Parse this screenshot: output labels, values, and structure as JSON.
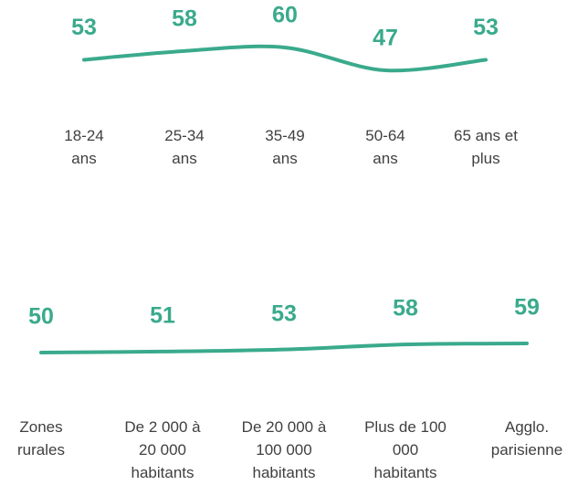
{
  "chart_data": [
    {
      "type": "line",
      "color": "#3aaa8c",
      "categories": [
        "18-24 ans",
        "25-34 ans",
        "35-49 ans",
        "50-64 ans",
        "65 ans et plus"
      ],
      "values": [
        53,
        58,
        60,
        47,
        53
      ]
    },
    {
      "type": "line",
      "color": "#3aaa8c",
      "categories": [
        "Zones rurales",
        "De 2 000 à 20 000 habitants",
        "De 20 000 à 100 000 habitants",
        "Plus de 100 000 habitants",
        "Agglo. parisienne"
      ],
      "values": [
        50,
        51,
        53,
        58,
        59
      ]
    }
  ]
}
